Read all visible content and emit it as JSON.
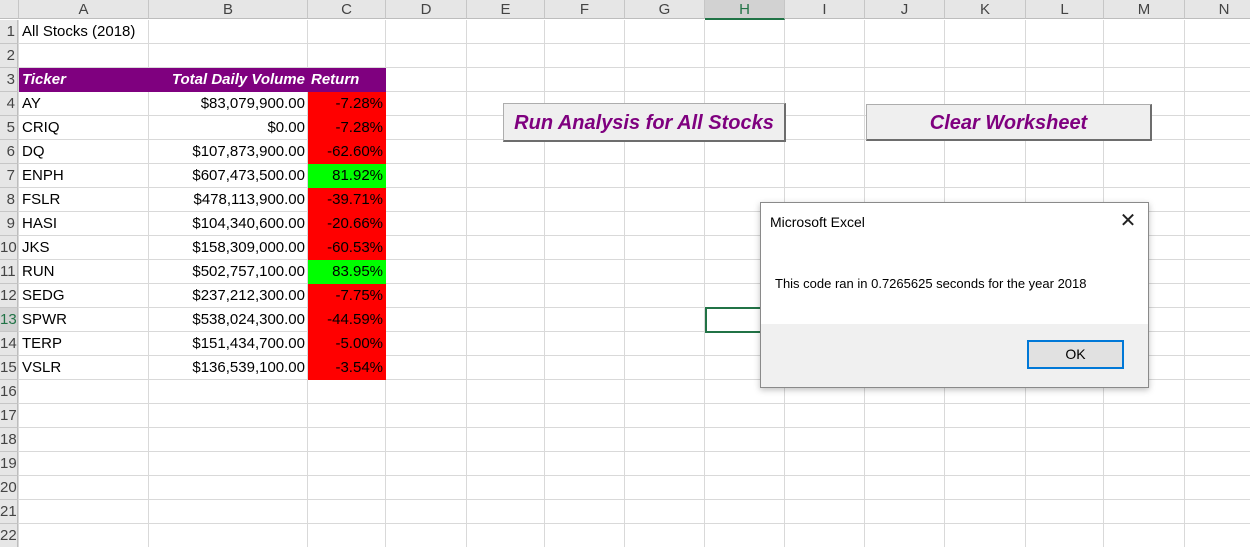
{
  "sheet": {
    "columns": [
      "A",
      "B",
      "C",
      "D",
      "E",
      "F",
      "G",
      "H",
      "I",
      "J",
      "K",
      "L",
      "M",
      "N"
    ],
    "selected_column": "H",
    "rows": [
      "1",
      "2",
      "3",
      "4",
      "5",
      "6",
      "7",
      "8",
      "9",
      "10",
      "11",
      "12",
      "13",
      "14",
      "15",
      "16",
      "17",
      "18",
      "19",
      "20",
      "21",
      "22"
    ],
    "selected_row": "13",
    "title_cell": "All Stocks (2018)",
    "headers": {
      "ticker": "Ticker",
      "volume": "Total Daily Volume",
      "return": "Return"
    },
    "header_color": "#7f007f",
    "positive_color": "#00ff00",
    "negative_color": "#ff0000",
    "stocks": [
      {
        "ticker": "AY",
        "volume": "$83,079,900.00",
        "return": "-7.28%",
        "positive": false
      },
      {
        "ticker": "CRIQ",
        "volume": "$0.00",
        "return": "-7.28%",
        "positive": false
      },
      {
        "ticker": "DQ",
        "volume": "$107,873,900.00",
        "return": "-62.60%",
        "positive": false
      },
      {
        "ticker": "ENPH",
        "volume": "$607,473,500.00",
        "return": "81.92%",
        "positive": true
      },
      {
        "ticker": "FSLR",
        "volume": "$478,113,900.00",
        "return": "-39.71%",
        "positive": false
      },
      {
        "ticker": "HASI",
        "volume": "$104,340,600.00",
        "return": "-20.66%",
        "positive": false
      },
      {
        "ticker": "JKS",
        "volume": "$158,309,000.00",
        "return": "-60.53%",
        "positive": false
      },
      {
        "ticker": "RUN",
        "volume": "$502,757,100.00",
        "return": "83.95%",
        "positive": true
      },
      {
        "ticker": "SEDG",
        "volume": "$237,212,300.00",
        "return": "-7.75%",
        "positive": false
      },
      {
        "ticker": "SPWR",
        "volume": "$538,024,300.00",
        "return": "-44.59%",
        "positive": false
      },
      {
        "ticker": "TERP",
        "volume": "$151,434,700.00",
        "return": "-5.00%",
        "positive": false
      },
      {
        "ticker": "VSLR",
        "volume": "$136,539,100.00",
        "return": "-3.54%",
        "positive": false
      }
    ]
  },
  "buttons": {
    "run_analysis": "Run Analysis for All Stocks",
    "clear_worksheet": "Clear Worksheet"
  },
  "dialog": {
    "title": "Microsoft Excel",
    "message": "This code ran in 0.7265625 seconds for the year 2018",
    "ok_label": "OK",
    "close_icon": "close-icon"
  }
}
